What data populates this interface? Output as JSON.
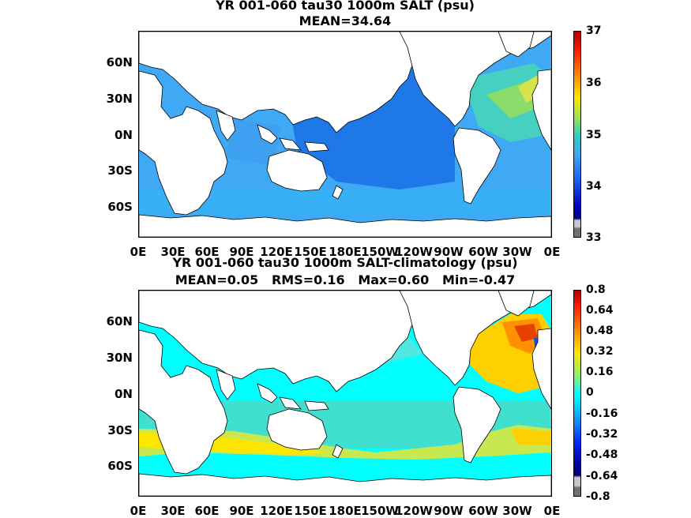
{
  "panels": [
    {
      "title_line1": "YR 001-060 tau30 1000m SALT (psu)",
      "title_line2": "MEAN=34.64",
      "lat_labels": [
        "60N",
        "30N",
        "0N",
        "30S",
        "60S"
      ],
      "lon_labels": [
        "0E",
        "30E",
        "60E",
        "90E",
        "120E",
        "150E",
        "180E",
        "150W",
        "120W",
        "90W",
        "60W",
        "30W",
        "0E"
      ],
      "colorbar_labels": [
        "37",
        "36",
        "35",
        "34",
        "33"
      ],
      "colorbar_range": [
        33,
        37
      ],
      "colormap": "jet",
      "field_summary": {
        "pacific": "34.4-34.6 (blue)",
        "southern_ocean": "34.6-34.8 (light blue)",
        "indian": "34.7-34.9 (light blue)",
        "north_atlantic": "35.0-35.5 (cyan/green)",
        "mediterranean_outflow": "35.5-36.0 (yellow)"
      }
    },
    {
      "title_line1": "YR 001-060 tau30 1000m SALT-climatology (psu)",
      "title_line2": "MEAN=0.05   RMS=0.16   Max=0.60   Min=-0.47",
      "lat_labels": [
        "60N",
        "30N",
        "0N",
        "30S",
        "60S"
      ],
      "lon_labels": [
        "0E",
        "30E",
        "60E",
        "90E",
        "120E",
        "150E",
        "180E",
        "150W",
        "120W",
        "90W",
        "60W",
        "30W",
        "0E"
      ],
      "colorbar_labels": [
        "0.8",
        "0.64",
        "0.48",
        "0.32",
        "0.16",
        "0",
        "-0.16",
        "-0.32",
        "-0.48",
        "-0.64",
        "-0.8"
      ],
      "colorbar_range": [
        -0.8,
        0.8
      ],
      "colormap": "jet with white-cyan center",
      "field_summary": {
        "pacific": "0 to 0.08 (cyan)",
        "southern_ocean": "0.16-0.32 (yellow-green band)",
        "north_atlantic_mediterranean": "0.4-0.6 (orange/red)",
        "labrador_sea": "-0.3 to -0.47 (blue)"
      }
    }
  ],
  "colors": {
    "land": "#ffffff",
    "coastline": "#000000",
    "ocean_low_panel1": "#1f78e8",
    "ocean_mid_panel1": "#3fa9f5",
    "ocean_high_panel1": "#4fd2a8",
    "panel2_neutral": "#00ffff",
    "panel2_positive": "#ffe600",
    "panel2_high": "#ff5a00",
    "panel2_negative": "#0050ff"
  }
}
